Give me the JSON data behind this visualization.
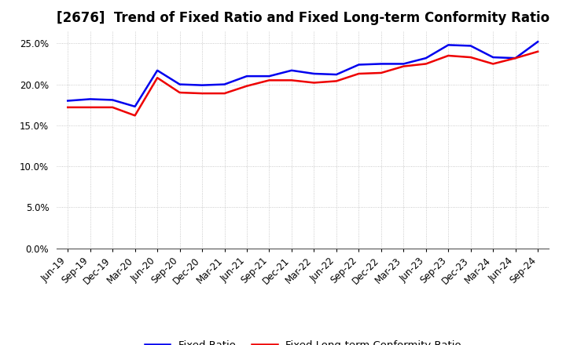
{
  "title": "[2676]  Trend of Fixed Ratio and Fixed Long-term Conformity Ratio",
  "x_labels": [
    "Jun-19",
    "Sep-19",
    "Dec-19",
    "Mar-20",
    "Jun-20",
    "Sep-20",
    "Dec-20",
    "Mar-21",
    "Jun-21",
    "Sep-21",
    "Dec-21",
    "Mar-22",
    "Jun-22",
    "Sep-22",
    "Dec-22",
    "Mar-23",
    "Jun-23",
    "Sep-23",
    "Dec-23",
    "Mar-24",
    "Jun-24",
    "Sep-24"
  ],
  "fixed_ratio": [
    18.0,
    18.2,
    18.1,
    17.3,
    21.7,
    20.0,
    19.9,
    20.0,
    21.0,
    21.0,
    21.7,
    21.3,
    21.2,
    22.4,
    22.5,
    22.5,
    23.2,
    24.8,
    24.7,
    23.3,
    23.2,
    25.2
  ],
  "fixed_lt_ratio": [
    17.2,
    17.2,
    17.2,
    16.2,
    20.8,
    19.0,
    18.9,
    18.9,
    19.8,
    20.5,
    20.5,
    20.2,
    20.4,
    21.3,
    21.4,
    22.2,
    22.5,
    23.5,
    23.3,
    22.5,
    23.2,
    24.0
  ],
  "fixed_ratio_color": "#0000EE",
  "fixed_lt_ratio_color": "#EE0000",
  "ylim": [
    0,
    26.5
  ],
  "yticks": [
    0.0,
    5.0,
    10.0,
    15.0,
    20.0,
    25.0
  ],
  "background_color": "#FFFFFF",
  "plot_bg_color": "#FFFFFF",
  "grid_color": "#AAAAAA",
  "legend_fixed_ratio": "Fixed Ratio",
  "legend_fixed_lt_ratio": "Fixed Long-term Conformity Ratio",
  "line_width": 1.8,
  "title_fontsize": 12,
  "tick_fontsize": 8.5,
  "legend_fontsize": 9.5
}
